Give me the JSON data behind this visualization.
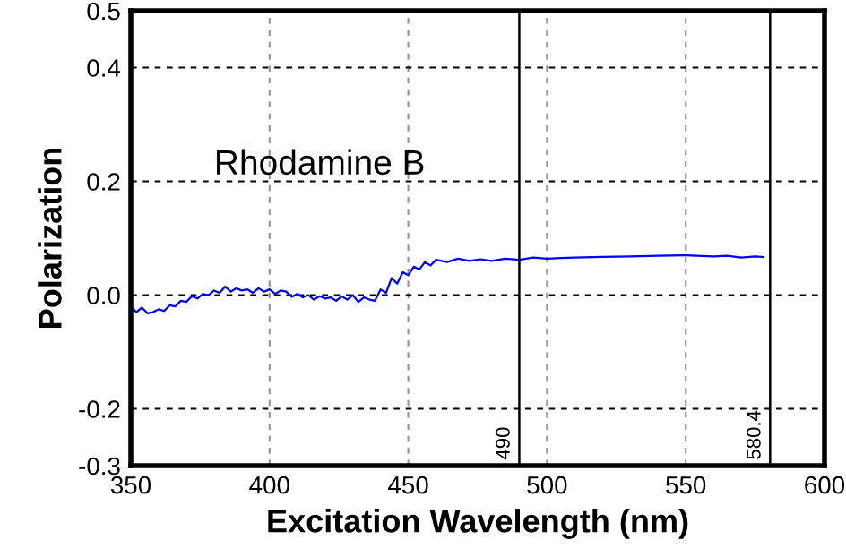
{
  "chart_data": {
    "type": "line",
    "xlabel": "Excitation Wavelength (nm)",
    "ylabel": "Polarization",
    "annotations": [
      "Rhodamine B"
    ],
    "x": [
      350,
      352,
      354,
      356,
      358,
      360,
      362,
      364,
      366,
      368,
      370,
      372,
      374,
      376,
      378,
      380,
      382,
      384,
      386,
      388,
      390,
      392,
      394,
      396,
      398,
      400,
      402,
      404,
      406,
      408,
      410,
      412,
      414,
      416,
      418,
      420,
      422,
      424,
      426,
      428,
      430,
      432,
      434,
      436,
      438,
      440,
      442,
      444,
      446,
      448,
      450,
      452,
      454,
      456,
      458,
      460,
      464,
      468,
      472,
      476,
      480,
      485,
      490,
      495,
      500,
      505,
      510,
      520,
      530,
      540,
      550,
      560,
      565,
      570,
      575,
      578
    ],
    "series": [
      {
        "color": "#0000ff",
        "values": [
          -0.02,
          -0.03,
          -0.022,
          -0.032,
          -0.03,
          -0.025,
          -0.028,
          -0.018,
          -0.02,
          -0.01,
          -0.012,
          -0.002,
          -0.006,
          0.002,
          0.0,
          0.008,
          0.004,
          0.015,
          0.006,
          0.012,
          0.008,
          0.01,
          0.004,
          0.012,
          0.006,
          0.01,
          0.002,
          0.008,
          0.006,
          -0.003,
          0.002,
          -0.004,
          0.0,
          -0.008,
          -0.002,
          -0.006,
          -0.004,
          -0.01,
          -0.002,
          -0.008,
          0.0,
          -0.012,
          -0.004,
          -0.008,
          -0.01,
          0.01,
          0.004,
          0.03,
          0.02,
          0.04,
          0.035,
          0.05,
          0.045,
          0.058,
          0.052,
          0.062,
          0.058,
          0.064,
          0.06,
          0.063,
          0.06,
          0.064,
          0.062,
          0.066,
          0.064,
          0.065,
          0.066,
          0.067,
          0.068,
          0.069,
          0.07,
          0.068,
          0.069,
          0.066,
          0.068,
          0.067
        ]
      }
    ],
    "xlim": [
      350,
      600
    ],
    "xticks": [
      350,
      400,
      450,
      500,
      550,
      600
    ],
    "ylim": [
      -0.3,
      0.5
    ],
    "yticks": [
      {
        "value": -0.3,
        "label": "-0.3"
      },
      {
        "value": -0.2,
        "label": "-0.2"
      },
      {
        "value": 0.0,
        "label": "0.0"
      },
      {
        "value": 0.2,
        "label": "0.2"
      },
      {
        "value": 0.4,
        "label": "0.4"
      },
      {
        "value": 0.5,
        "label": "0.5"
      }
    ],
    "grid": true,
    "marker": "none",
    "line_style": "solid",
    "legend": false,
    "ref_lines": [
      {
        "axis": "x",
        "value": 490,
        "label": "490",
        "color": "#000000"
      },
      {
        "axis": "x",
        "value": 580.4,
        "label": "580.4",
        "color": "#000000"
      }
    ]
  }
}
